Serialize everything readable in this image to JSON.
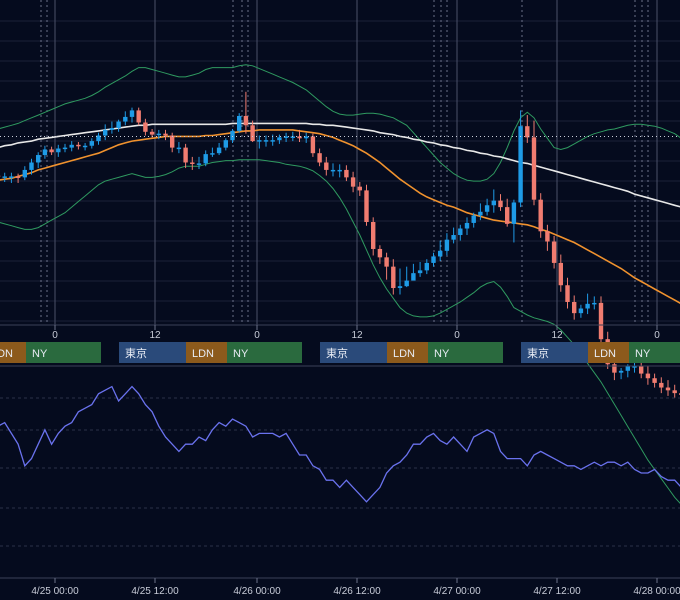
{
  "colors": {
    "background": "#050b1e",
    "grid": "#1a2138",
    "up": "#1e9be6",
    "down": "#f07c70",
    "bollinger": "#2f9a60",
    "ma_fast": "#f0922e",
    "ma_slow": "#e8e8e8",
    "oscillator": "#6a72ee",
    "tokyo": "#2a4a7a",
    "london": "#8c5a1c",
    "newyork": "#2a6a3e",
    "separator": "#3a4058"
  },
  "chart_data": [
    {
      "type": "candlestick",
      "x": [
        0,
        1,
        2,
        3,
        4,
        5,
        6,
        7,
        8,
        9,
        10,
        11,
        12,
        13,
        14,
        15,
        16,
        17,
        18,
        19,
        20,
        21,
        22,
        23,
        24,
        25,
        26,
        27,
        28,
        29,
        30,
        31,
        32,
        33,
        34,
        35,
        36,
        37,
        38,
        39,
        40,
        41,
        42,
        43,
        44,
        45,
        46,
        47,
        48,
        49,
        50,
        51,
        52,
        53,
        54,
        55,
        56,
        57,
        58,
        59,
        60,
        61,
        62,
        63,
        64,
        65,
        66,
        67,
        68,
        69,
        70,
        71,
        72,
        73,
        74,
        75,
        76,
        77,
        78,
        79,
        80,
        81,
        82,
        83,
        84,
        85,
        86,
        87,
        88,
        89,
        90,
        91,
        92,
        93,
        94,
        95,
        96,
        97,
        98,
        99,
        100,
        101,
        102
      ],
      "open": [
        0.5,
        0.49,
        0.49,
        0.49,
        0.48,
        0.56,
        0.64,
        0.72,
        0.78,
        0.75,
        0.79,
        0.8,
        0.83,
        0.82,
        0.82,
        0.87,
        0.93,
        0.99,
        1.01,
        1.08,
        1.13,
        1.2,
        1.07,
        0.97,
        0.94,
        0.95,
        0.93,
        0.8,
        0.8,
        0.64,
        0.63,
        0.63,
        0.73,
        0.74,
        0.8,
        0.88,
        0.98,
        1.14,
        1.04,
        0.87,
        0.88,
        0.88,
        0.88,
        0.91,
        0.92,
        0.92,
        0.9,
        0.92,
        0.74,
        0.64,
        0.56,
        0.56,
        0.56,
        0.48,
        0.38,
        0.34,
        0.0,
        -0.29,
        -0.38,
        -0.48,
        -0.71,
        -0.69,
        -0.63,
        -0.55,
        -0.52,
        -0.44,
        -0.37,
        -0.31,
        -0.19,
        -0.14,
        -0.07,
        -0.01,
        0.07,
        0.11,
        0.18,
        0.23,
        0.16,
        -0.02,
        0.21,
        1.03,
        0.91,
        0.24,
        -0.1,
        -0.21,
        -0.44,
        -0.68,
        -0.86,
        -0.98,
        -0.93,
        -0.88,
        -0.87,
        -1.26,
        -1.53,
        -1.62,
        -1.6,
        -1.55,
        -1.55,
        -1.63,
        -1.68,
        -1.73,
        -1.78,
        -1.81,
        -1.84
      ],
      "high": [
        0.55,
        0.53,
        0.53,
        0.52,
        0.6,
        0.68,
        0.75,
        0.82,
        0.81,
        0.83,
        0.84,
        0.87,
        0.86,
        0.85,
        0.9,
        0.96,
        1.05,
        1.08,
        1.1,
        1.19,
        1.23,
        1.23,
        1.11,
        1.0,
        0.99,
        0.99,
        0.96,
        0.86,
        0.84,
        0.7,
        0.7,
        0.77,
        0.8,
        0.85,
        0.9,
        1.0,
        1.17,
        1.4,
        1.09,
        0.93,
        0.93,
        0.94,
        0.94,
        0.96,
        0.97,
        0.99,
        0.96,
        0.95,
        0.79,
        0.7,
        0.63,
        0.62,
        0.61,
        0.54,
        0.43,
        0.4,
        0.05,
        -0.25,
        -0.33,
        -0.4,
        -0.5,
        -0.48,
        -0.45,
        -0.43,
        -0.4,
        -0.33,
        -0.2,
        -0.12,
        -0.06,
        -0.03,
        0.05,
        0.1,
        0.2,
        0.25,
        0.35,
        0.3,
        0.25,
        0.24,
        1.2,
        1.15,
        1.09,
        0.31,
        -0.03,
        -0.15,
        -0.35,
        -0.6,
        -0.79,
        -0.89,
        -0.77,
        -0.8,
        -0.8,
        -1.18,
        -1.46,
        -1.57,
        -1.53,
        -1.48,
        -1.49,
        -1.55,
        -1.63,
        -1.67,
        -1.7,
        -1.75,
        -1.8
      ],
      "low": [
        0.43,
        0.43,
        0.42,
        0.42,
        0.45,
        0.51,
        0.58,
        0.68,
        0.72,
        0.7,
        0.75,
        0.76,
        0.78,
        0.77,
        0.79,
        0.83,
        0.88,
        0.95,
        0.97,
        1.04,
        1.07,
        1.04,
        0.93,
        0.91,
        0.89,
        0.88,
        0.75,
        0.74,
        0.58,
        0.56,
        0.57,
        0.6,
        0.7,
        0.72,
        0.77,
        0.85,
        0.96,
        0.95,
        0.86,
        0.79,
        0.81,
        0.82,
        0.84,
        0.86,
        0.87,
        0.86,
        0.85,
        0.7,
        0.6,
        0.5,
        0.49,
        0.48,
        0.44,
        0.32,
        0.28,
        -0.04,
        -0.36,
        -0.45,
        -0.62,
        -0.78,
        -0.78,
        -0.7,
        -0.62,
        -0.59,
        -0.56,
        -0.48,
        -0.42,
        -0.36,
        -0.23,
        -0.2,
        -0.14,
        -0.06,
        0.02,
        0.07,
        0.1,
        0.12,
        -0.05,
        -0.22,
        0.16,
        0.85,
        0.18,
        -0.17,
        -0.31,
        -0.5,
        -0.75,
        -0.93,
        -1.05,
        -1.03,
        -0.99,
        -0.94,
        -1.3,
        -1.58,
        -1.7,
        -1.69,
        -1.67,
        -1.62,
        -1.68,
        -1.75,
        -1.78,
        -1.84,
        -1.87,
        -1.89,
        -1.92
      ],
      "close": [
        0.49,
        0.49,
        0.49,
        0.48,
        0.56,
        0.64,
        0.72,
        0.78,
        0.75,
        0.79,
        0.8,
        0.83,
        0.82,
        0.82,
        0.87,
        0.93,
        0.99,
        1.01,
        1.08,
        1.13,
        1.2,
        1.07,
        0.97,
        0.94,
        0.95,
        0.93,
        0.8,
        0.8,
        0.64,
        0.63,
        0.63,
        0.73,
        0.74,
        0.8,
        0.88,
        0.98,
        1.14,
        1.04,
        0.87,
        0.88,
        0.88,
        0.88,
        0.91,
        0.92,
        0.92,
        0.9,
        0.92,
        0.74,
        0.64,
        0.56,
        0.56,
        0.56,
        0.48,
        0.38,
        0.34,
        0.0,
        -0.29,
        -0.38,
        -0.48,
        -0.71,
        -0.69,
        -0.63,
        -0.55,
        -0.52,
        -0.44,
        -0.37,
        -0.31,
        -0.19,
        -0.14,
        -0.07,
        -0.01,
        0.07,
        0.11,
        0.18,
        0.23,
        0.16,
        -0.02,
        0.21,
        1.03,
        0.91,
        0.24,
        -0.1,
        -0.21,
        -0.44,
        -0.68,
        -0.86,
        -0.98,
        -0.93,
        -0.88,
        -0.87,
        -1.26,
        -1.53,
        -1.62,
        -1.6,
        -1.55,
        -1.55,
        -1.63,
        -1.68,
        -1.73,
        -1.78,
        -1.81,
        -1.84,
        -1.86
      ],
      "moving_averages": [
        {
          "y": [
            0.45,
            0.46,
            0.47,
            0.49,
            0.51,
            0.53,
            0.56,
            0.58,
            0.6,
            0.62,
            0.64,
            0.66,
            0.68,
            0.7,
            0.72,
            0.74,
            0.77,
            0.8,
            0.83,
            0.85,
            0.87,
            0.88,
            0.89,
            0.9,
            0.91,
            0.92,
            0.92,
            0.92,
            0.92,
            0.92,
            0.92,
            0.93,
            0.93,
            0.94,
            0.95,
            0.96,
            0.97,
            0.98,
            0.98,
            0.99,
            0.99,
            0.99,
            0.99,
            0.99,
            0.99,
            0.98,
            0.97,
            0.96,
            0.95,
            0.93,
            0.91,
            0.88,
            0.85,
            0.82,
            0.78,
            0.74,
            0.69,
            0.64,
            0.58,
            0.52,
            0.46,
            0.41,
            0.36,
            0.31,
            0.27,
            0.24,
            0.21,
            0.18,
            0.16,
            0.13,
            0.1,
            0.08,
            0.06,
            0.04,
            0.02,
            0.01,
            0.0,
            -0.01,
            -0.02,
            -0.03,
            -0.05,
            -0.08,
            -0.1,
            -0.13,
            -0.16,
            -0.19,
            -0.22,
            -0.26,
            -0.3,
            -0.34,
            -0.38,
            -0.42,
            -0.46,
            -0.5,
            -0.55,
            -0.6,
            -0.64,
            -0.68,
            -0.72,
            -0.76,
            -0.8,
            -0.84,
            -0.88
          ]
        },
        {
          "y": [
            0.8,
            0.82,
            0.83,
            0.85,
            0.86,
            0.87,
            0.89,
            0.9,
            0.91,
            0.92,
            0.93,
            0.94,
            0.95,
            0.96,
            0.97,
            0.98,
            0.99,
            1.0,
            1.01,
            1.02,
            1.03,
            1.04,
            1.04,
            1.05,
            1.05,
            1.05,
            1.05,
            1.05,
            1.05,
            1.05,
            1.05,
            1.05,
            1.05,
            1.05,
            1.05,
            1.06,
            1.06,
            1.06,
            1.06,
            1.06,
            1.06,
            1.06,
            1.06,
            1.06,
            1.06,
            1.06,
            1.06,
            1.05,
            1.05,
            1.04,
            1.04,
            1.03,
            1.02,
            1.01,
            1.0,
            0.99,
            0.98,
            0.96,
            0.95,
            0.94,
            0.92,
            0.91,
            0.89,
            0.88,
            0.86,
            0.85,
            0.83,
            0.82,
            0.8,
            0.79,
            0.77,
            0.76,
            0.74,
            0.73,
            0.71,
            0.7,
            0.68,
            0.66,
            0.64,
            0.63,
            0.61,
            0.59,
            0.57,
            0.55,
            0.53,
            0.51,
            0.49,
            0.47,
            0.45,
            0.43,
            0.41,
            0.39,
            0.37,
            0.35,
            0.33,
            0.3,
            0.28,
            0.26,
            0.24,
            0.22,
            0.2,
            0.18,
            0.16
          ]
        }
      ],
      "bollinger_upper": [
        1.0,
        1.02,
        1.04,
        1.06,
        1.09,
        1.12,
        1.15,
        1.18,
        1.21,
        1.24,
        1.27,
        1.29,
        1.31,
        1.33,
        1.36,
        1.4,
        1.45,
        1.49,
        1.53,
        1.57,
        1.62,
        1.66,
        1.66,
        1.64,
        1.62,
        1.6,
        1.58,
        1.56,
        1.56,
        1.58,
        1.6,
        1.64,
        1.66,
        1.66,
        1.66,
        1.66,
        1.68,
        1.69,
        1.68,
        1.65,
        1.62,
        1.59,
        1.56,
        1.53,
        1.5,
        1.46,
        1.42,
        1.36,
        1.3,
        1.24,
        1.19,
        1.16,
        1.15,
        1.15,
        1.16,
        1.17,
        1.17,
        1.16,
        1.14,
        1.12,
        1.08,
        1.04,
        0.96,
        0.88,
        0.8,
        0.72,
        0.64,
        0.58,
        0.52,
        0.48,
        0.45,
        0.44,
        0.44,
        0.46,
        0.52,
        0.64,
        0.8,
        0.98,
        1.12,
        1.18,
        1.12,
        1.0,
        0.9,
        0.8,
        0.78,
        0.8,
        0.84,
        0.88,
        0.92,
        0.95,
        0.97,
        0.99,
        1.0,
        1.02,
        1.04,
        1.05,
        1.05,
        1.04,
        1.03,
        1.01,
        0.98,
        0.95,
        0.9
      ],
      "bollinger_lower": [
        0.0,
        -0.02,
        -0.04,
        -0.06,
        -0.08,
        -0.08,
        -0.06,
        -0.02,
        0.02,
        0.06,
        0.1,
        0.16,
        0.22,
        0.28,
        0.34,
        0.4,
        0.44,
        0.46,
        0.48,
        0.5,
        0.52,
        0.5,
        0.48,
        0.48,
        0.49,
        0.51,
        0.54,
        0.58,
        0.6,
        0.6,
        0.6,
        0.62,
        0.64,
        0.65,
        0.66,
        0.66,
        0.67,
        0.67,
        0.67,
        0.67,
        0.66,
        0.65,
        0.64,
        0.62,
        0.61,
        0.6,
        0.58,
        0.55,
        0.5,
        0.44,
        0.36,
        0.26,
        0.14,
        0.0,
        -0.14,
        -0.3,
        -0.46,
        -0.6,
        -0.72,
        -0.82,
        -0.92,
        -0.98,
        -1.01,
        -1.02,
        -1.02,
        -1.01,
        -0.98,
        -0.94,
        -0.9,
        -0.86,
        -0.81,
        -0.76,
        -0.7,
        -0.66,
        -0.64,
        -0.7,
        -0.8,
        -0.92,
        -0.96,
        -1.0,
        -1.03,
        -1.05,
        -1.07,
        -1.1,
        -1.16,
        -1.24,
        -1.32,
        -1.42,
        -1.52,
        -1.62,
        -1.72,
        -1.84,
        -1.96,
        -2.08,
        -2.2,
        -2.32,
        -2.44,
        -2.56,
        -2.66,
        -2.76,
        -2.86,
        -2.96,
        -3.04
      ],
      "x_tick_labels": [
        "0",
        "12",
        "0",
        "12",
        "0",
        "12",
        "0"
      ],
      "reference_level": 0.92
    },
    {
      "type": "line",
      "x": [
        0,
        1,
        2,
        3,
        4,
        5,
        6,
        7,
        8,
        9,
        10,
        11,
        12,
        13,
        14,
        15,
        16,
        17,
        18,
        19,
        20,
        21,
        22,
        23,
        24,
        25,
        26,
        27,
        28,
        29,
        30,
        31,
        32,
        33,
        34,
        35,
        36,
        37,
        38,
        39,
        40,
        41,
        42,
        43,
        44,
        45,
        46,
        47,
        48,
        49,
        50,
        51,
        52,
        53,
        54,
        55,
        56,
        57,
        58,
        59,
        60,
        61,
        62,
        63,
        64,
        65,
        66,
        67,
        68,
        69,
        70,
        71,
        72,
        73,
        74,
        75,
        76,
        77,
        78,
        79,
        80,
        81,
        82,
        83,
        84,
        85,
        86,
        87,
        88,
        89,
        90,
        91,
        92,
        93,
        94,
        95,
        96,
        97,
        98,
        99,
        100,
        101,
        102
      ],
      "y": [
        55,
        56,
        53,
        50,
        44,
        46,
        50,
        54,
        50,
        53,
        55,
        56,
        59,
        60,
        61,
        64,
        65,
        66,
        62,
        64,
        66,
        64,
        61,
        59,
        55,
        52,
        50,
        48,
        50,
        50,
        52,
        51,
        54,
        56,
        55,
        57,
        56,
        55,
        52,
        53,
        53,
        53,
        52,
        53,
        50,
        47,
        47,
        44,
        43,
        40,
        40,
        38,
        40,
        38,
        36,
        34,
        36,
        38,
        42,
        44,
        45,
        47,
        50,
        50,
        52,
        53,
        51,
        50,
        52,
        50,
        48,
        52,
        53,
        54,
        53,
        48,
        46,
        46,
        46,
        44,
        47,
        48,
        47,
        46,
        45,
        44,
        44,
        43,
        44,
        45,
        44,
        45,
        45,
        44,
        45,
        43,
        42,
        42,
        43,
        41,
        40,
        40,
        38
      ],
      "x_tick_labels": [
        "4/25 00:00",
        "4/25 12:00",
        "4/26 00:00",
        "4/26 12:00",
        "4/27 00:00",
        "4/27 12:00",
        "4/28 00:00"
      ]
    }
  ],
  "sessions": {
    "tokyo_label": "東京",
    "london_label": "LDN",
    "newyork_label": "NY"
  }
}
